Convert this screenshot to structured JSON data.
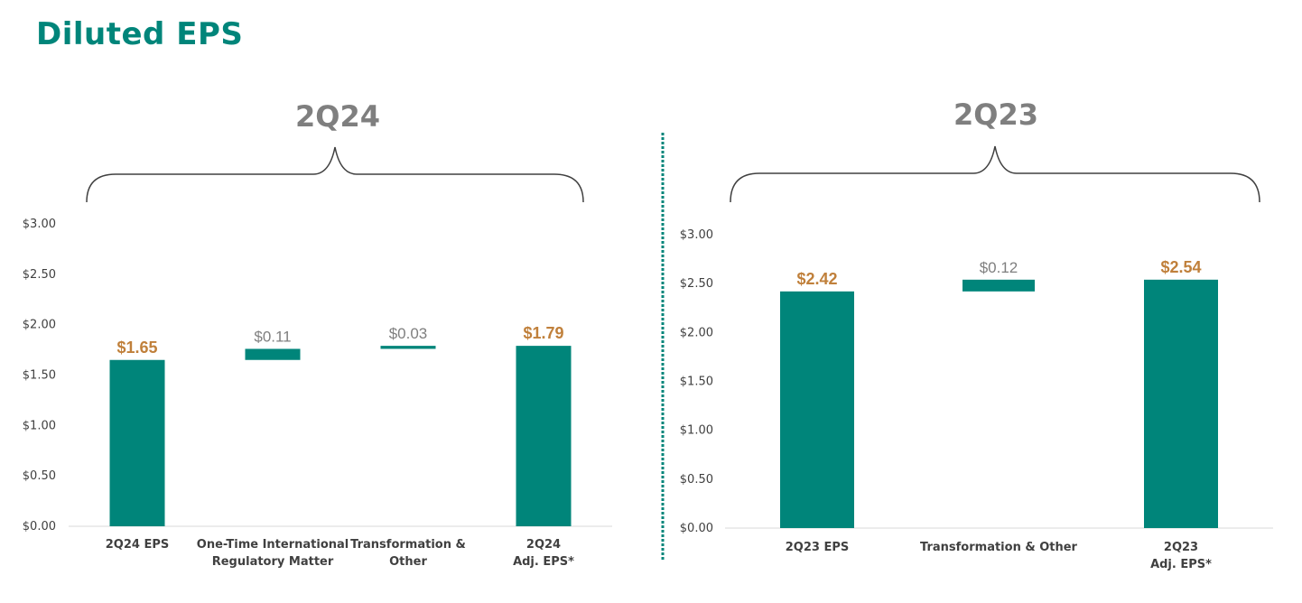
{
  "title": "Diluted EPS",
  "colors": {
    "bar": "#00857A",
    "total_label": "#C0803B",
    "delta_label": "#7F7F7F",
    "divider": "#00857A",
    "brace": "#404040"
  },
  "chart_data": [
    {
      "type": "bar",
      "subtype": "waterfall",
      "period_label": "2Q24",
      "ylim": [
        0,
        3.0
      ],
      "yticks": [
        "$0.00",
        "$0.50",
        "$1.00",
        "$1.50",
        "$2.00",
        "$2.50",
        "$3.00"
      ],
      "categories": [
        [
          "2Q24 EPS"
        ],
        [
          "One-Time International",
          "Regulatory Matter"
        ],
        [
          "Transformation &",
          "Other"
        ],
        [
          "2Q24",
          "Adj. EPS*"
        ]
      ],
      "steps": [
        {
          "kind": "total",
          "value": 1.65,
          "label": "$1.65"
        },
        {
          "kind": "delta",
          "value": 0.11,
          "label": "$0.11"
        },
        {
          "kind": "delta",
          "value": 0.03,
          "label": "$0.03"
        },
        {
          "kind": "total",
          "value": 1.79,
          "label": "$1.79"
        }
      ]
    },
    {
      "type": "bar",
      "subtype": "waterfall",
      "period_label": "2Q23",
      "ylim": [
        0,
        3.0
      ],
      "yticks": [
        "$0.00",
        "$0.50",
        "$1.00",
        "$1.50",
        "$2.00",
        "$2.50",
        "$3.00"
      ],
      "categories": [
        [
          "2Q23 EPS"
        ],
        [
          "Transformation & Other"
        ],
        [
          "2Q23",
          "Adj. EPS*"
        ]
      ],
      "steps": [
        {
          "kind": "total",
          "value": 2.42,
          "label": "$2.42"
        },
        {
          "kind": "delta",
          "value": 0.12,
          "label": "$0.12"
        },
        {
          "kind": "total",
          "value": 2.54,
          "label": "$2.54"
        }
      ]
    }
  ]
}
